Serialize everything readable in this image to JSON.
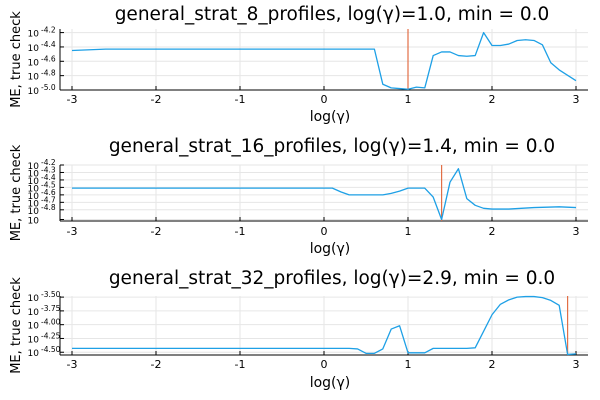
{
  "chart_data": [
    {
      "type": "line",
      "title": "general_strat_8_profiles, log(γ)=1.0, min = 0.0",
      "xlabel": "log(γ)",
      "ylabel": "ME, true check",
      "xlim": [
        -3,
        3
      ],
      "xticks": [
        "-3",
        "-2",
        "-1",
        "0",
        "1",
        "2",
        "3"
      ],
      "ylim": [
        -5.0,
        -4.15
      ],
      "yticks": [
        {
          "base": "10",
          "exp": "-4.2",
          "value": -4.2
        },
        {
          "base": "10",
          "exp": "-4.4",
          "value": -4.4
        },
        {
          "base": "10",
          "exp": "-4.6",
          "value": -4.6
        },
        {
          "base": "10",
          "exp": "-4.8",
          "value": -4.8
        },
        {
          "base": "10",
          "exp": "-5.0",
          "value": -5.0
        }
      ],
      "vline": 1.0,
      "series": [
        {
          "name": "ME",
          "color": "#1ea0e6",
          "x": [
            -3.0,
            -2.6,
            -2.2,
            -1.8,
            -1.4,
            -1.0,
            -0.6,
            -0.2,
            0.2,
            0.6,
            0.7,
            0.8,
            0.9,
            1.0,
            1.1,
            1.2,
            1.3,
            1.4,
            1.5,
            1.6,
            1.7,
            1.8,
            1.9,
            2.0,
            2.1,
            2.2,
            2.3,
            2.4,
            2.5,
            2.6,
            2.7,
            2.8,
            3.0
          ],
          "y": [
            -4.45,
            -4.43,
            -4.43,
            -4.43,
            -4.43,
            -4.43,
            -4.43,
            -4.43,
            -4.43,
            -4.43,
            -4.92,
            -4.97,
            -4.98,
            -4.99,
            -4.96,
            -4.97,
            -4.52,
            -4.47,
            -4.47,
            -4.52,
            -4.53,
            -4.52,
            -4.2,
            -4.38,
            -4.38,
            -4.36,
            -4.31,
            -4.3,
            -4.31,
            -4.37,
            -4.62,
            -4.72,
            -4.87
          ]
        }
      ]
    },
    {
      "type": "line",
      "title": "general_strat_16_profiles, log(γ)=1.4, min = 0.0",
      "xlabel": "log(γ)",
      "ylabel": "ME, true check",
      "xlim": [
        -3,
        3
      ],
      "xticks": [
        "-3",
        "-2",
        "-1",
        "0",
        "1",
        "2",
        "3"
      ],
      "ylim": [
        -4.95,
        -4.2
      ],
      "yticks": [
        {
          "base": "10",
          "exp": "-4.2",
          "value": -4.2
        },
        {
          "base": "10",
          "exp": "-4.3",
          "value": -4.3
        },
        {
          "base": "10",
          "exp": "-4.4",
          "value": -4.4
        },
        {
          "base": "10",
          "exp": "-4.5",
          "value": -4.5
        },
        {
          "base": "10",
          "exp": "-4.6",
          "value": -4.6
        },
        {
          "base": "10",
          "exp": "-4.7",
          "value": -4.7
        },
        {
          "base": "10",
          "exp": "-4.8",
          "value": -4.8
        },
        {
          "base": "10",
          "exp": "",
          "value": -4.93
        }
      ],
      "vline": 1.4,
      "series": [
        {
          "name": "ME",
          "color": "#1ea0e6",
          "x": [
            -3.0,
            -2.5,
            -2.0,
            -1.5,
            -1.0,
            -0.5,
            0.0,
            0.1,
            0.2,
            0.3,
            0.5,
            0.7,
            0.8,
            0.9,
            1.0,
            1.1,
            1.2,
            1.3,
            1.4,
            1.5,
            1.6,
            1.7,
            1.8,
            1.9,
            2.0,
            2.2,
            2.5,
            2.8,
            3.0
          ],
          "y": [
            -4.51,
            -4.51,
            -4.51,
            -4.51,
            -4.51,
            -4.51,
            -4.51,
            -4.51,
            -4.56,
            -4.6,
            -4.6,
            -4.6,
            -4.58,
            -4.55,
            -4.51,
            -4.51,
            -4.51,
            -4.63,
            -4.93,
            -4.43,
            -4.25,
            -4.65,
            -4.74,
            -4.78,
            -4.79,
            -4.79,
            -4.77,
            -4.76,
            -4.77
          ]
        }
      ]
    },
    {
      "type": "line",
      "title": "general_strat_32_profiles, log(γ)=2.9, min = 0.0",
      "xlabel": "log(γ)",
      "ylabel": "ME, true check",
      "xlim": [
        -3,
        3
      ],
      "xticks": [
        "-3",
        "-2",
        "-1",
        "0",
        "1",
        "2",
        "3"
      ],
      "ylim": [
        -4.55,
        -3.48
      ],
      "yticks": [
        {
          "base": "10",
          "exp": "-3.50",
          "value": -3.5
        },
        {
          "base": "10",
          "exp": "-3.75",
          "value": -3.75
        },
        {
          "base": "10",
          "exp": "-4.00",
          "value": -4.0
        },
        {
          "base": "10",
          "exp": "-4.25",
          "value": -4.25
        },
        {
          "base": "10",
          "exp": "-4.50",
          "value": -4.5
        }
      ],
      "vline": 2.9,
      "series": [
        {
          "name": "ME",
          "color": "#1ea0e6",
          "x": [
            -3.0,
            -2.5,
            -2.0,
            -1.5,
            -1.0,
            -0.5,
            0.0,
            0.3,
            0.4,
            0.5,
            0.6,
            0.7,
            0.8,
            0.9,
            1.0,
            1.1,
            1.2,
            1.3,
            1.4,
            1.5,
            1.6,
            1.7,
            1.8,
            1.9,
            2.0,
            2.1,
            2.2,
            2.3,
            2.4,
            2.5,
            2.6,
            2.7,
            2.8,
            2.9,
            3.0
          ],
          "y": [
            -4.43,
            -4.43,
            -4.43,
            -4.43,
            -4.43,
            -4.43,
            -4.43,
            -4.43,
            -4.44,
            -4.52,
            -4.52,
            -4.44,
            -4.08,
            -4.02,
            -4.51,
            -4.51,
            -4.51,
            -4.43,
            -4.43,
            -4.43,
            -4.43,
            -4.43,
            -4.42,
            -4.12,
            -3.82,
            -3.63,
            -3.55,
            -3.5,
            -3.49,
            -3.49,
            -3.51,
            -3.56,
            -3.65,
            -4.54,
            -4.53
          ]
        }
      ]
    }
  ]
}
